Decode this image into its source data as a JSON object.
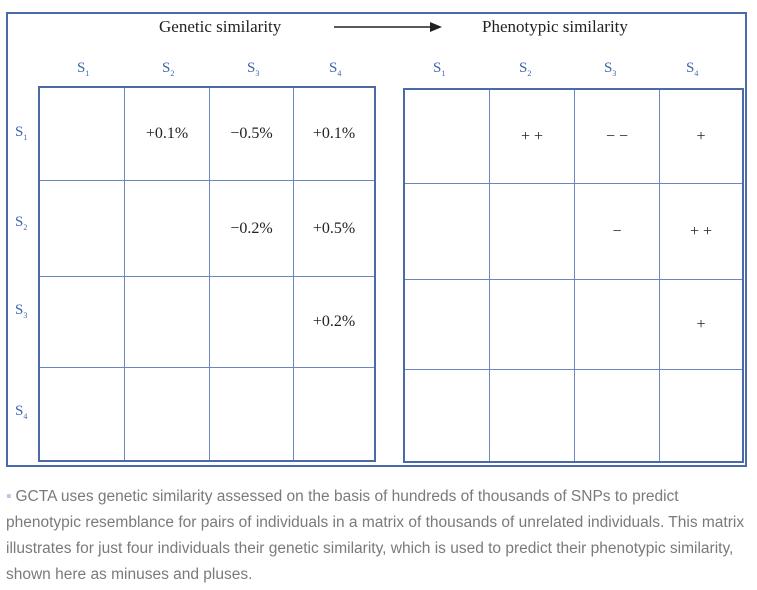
{
  "headings": {
    "left": "Genetic similarity",
    "right": "Phenotypic similarity"
  },
  "labels": [
    {
      "base": "S",
      "sub": "1"
    },
    {
      "base": "S",
      "sub": "2"
    },
    {
      "base": "S",
      "sub": "3"
    },
    {
      "base": "S",
      "sub": "4"
    }
  ],
  "genetic_matrix": [
    [
      "",
      "+0.1%",
      "−0.5%",
      "+0.1%"
    ],
    [
      "",
      "",
      "−0.2%",
      "+0.5%"
    ],
    [
      "",
      "",
      "",
      "+0.2%"
    ],
    [
      "",
      "",
      "",
      ""
    ]
  ],
  "phenotypic_matrix": [
    [
      "",
      "+ +",
      "− −",
      "+"
    ],
    [
      "",
      "",
      "−",
      "+ +"
    ],
    [
      "",
      "",
      "",
      "+"
    ],
    [
      "",
      "",
      "",
      ""
    ]
  ],
  "caption": {
    "bullet": "▪",
    "text": "GCTA uses genetic similarity assessed on the basis of hundreds of thousands of SNPs to predict phenotypic resemblance for pairs of individuals in a matrix of thousands of unrelated individuals. This matrix illustrates for just four individuals their genetic similarity, which is used to predict their phenotypic similarity, shown here as minuses and pluses."
  },
  "colors": {
    "frame": "#4a6aa8",
    "label": "#3c66b0",
    "caption": "#7a7a7a"
  }
}
